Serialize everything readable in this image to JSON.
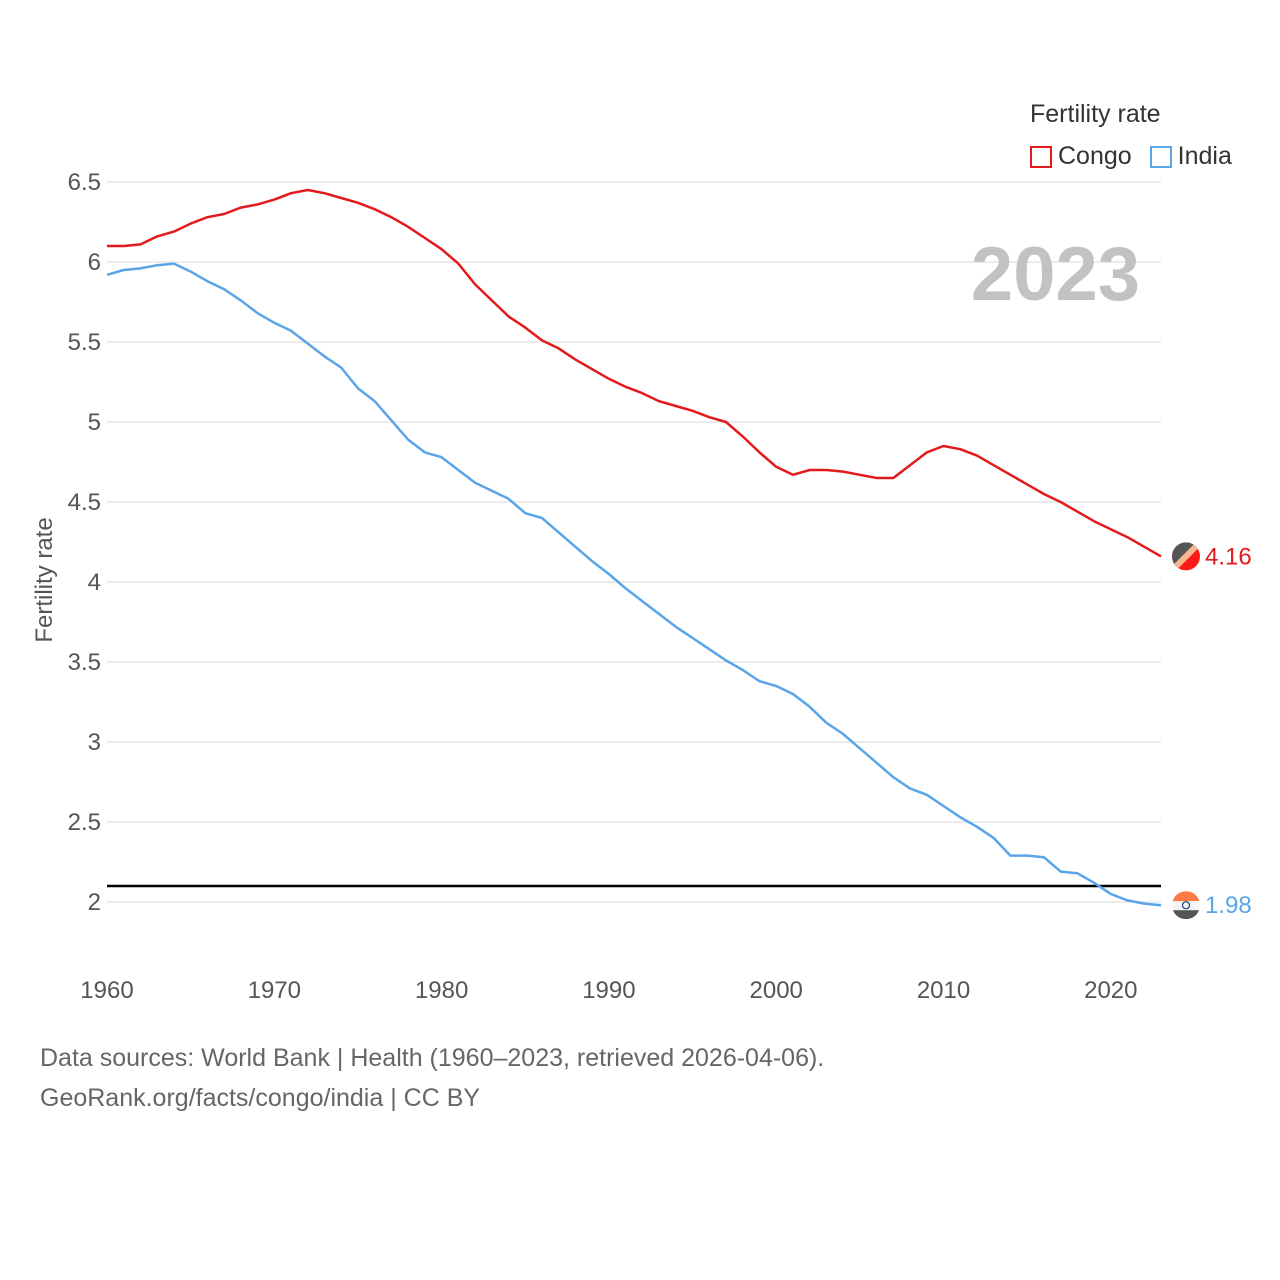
{
  "legend": {
    "title": "Fertility rate",
    "items": [
      {
        "label": "Congo",
        "color": "#e31a1c"
      },
      {
        "label": "India",
        "color": "#5aa5e8"
      }
    ]
  },
  "footer": {
    "line1": "Data sources: World Bank | Health (1960–2023, retrieved 2026-04-06).",
    "line2": "GeoRank.org/facts/congo/india | CC BY"
  },
  "chart_data": {
    "type": "line",
    "ylabel": "Fertility rate",
    "xlabel": "",
    "year_label": "2023",
    "xlim": [
      1960,
      2023
    ],
    "ylim": [
      1.6,
      6.6
    ],
    "xticks": [
      1960,
      1970,
      1980,
      1990,
      2000,
      2010,
      2020
    ],
    "yticks": [
      2,
      2.5,
      3,
      3.5,
      4,
      4.5,
      5,
      5.5,
      6,
      6.5
    ],
    "ytick_labels": [
      "2",
      "2.5",
      "3",
      "3.5",
      "4",
      "4.5",
      "5",
      "5.5",
      "6",
      "6.5"
    ],
    "reference_line": 2.1,
    "x": [
      1960,
      1961,
      1962,
      1963,
      1964,
      1965,
      1966,
      1967,
      1968,
      1969,
      1970,
      1971,
      1972,
      1973,
      1974,
      1975,
      1976,
      1977,
      1978,
      1979,
      1980,
      1981,
      1982,
      1983,
      1984,
      1985,
      1986,
      1987,
      1988,
      1989,
      1990,
      1991,
      1992,
      1993,
      1994,
      1995,
      1996,
      1997,
      1998,
      1999,
      2000,
      2001,
      2002,
      2003,
      2004,
      2005,
      2006,
      2007,
      2008,
      2009,
      2010,
      2011,
      2012,
      2013,
      2014,
      2015,
      2016,
      2017,
      2018,
      2019,
      2020,
      2021,
      2022,
      2023
    ],
    "series": [
      {
        "name": "Congo",
        "color": "#e31a1c",
        "end_label": "4.16",
        "values": [
          6.1,
          6.1,
          6.11,
          6.16,
          6.19,
          6.24,
          6.28,
          6.3,
          6.34,
          6.36,
          6.39,
          6.43,
          6.45,
          6.43,
          6.4,
          6.37,
          6.33,
          6.28,
          6.22,
          6.15,
          6.08,
          5.99,
          5.86,
          5.76,
          5.66,
          5.59,
          5.51,
          5.46,
          5.39,
          5.33,
          5.27,
          5.22,
          5.18,
          5.13,
          5.1,
          5.07,
          5.03,
          5.0,
          4.91,
          4.81,
          4.72,
          4.67,
          4.7,
          4.7,
          4.69,
          4.67,
          4.65,
          4.65,
          4.73,
          4.81,
          4.85,
          4.83,
          4.79,
          4.73,
          4.67,
          4.61,
          4.55,
          4.5,
          4.44,
          4.38,
          4.33,
          4.28,
          4.22,
          4.16
        ]
      },
      {
        "name": "India",
        "color": "#5aa5e8",
        "end_label": "1.98",
        "values": [
          5.92,
          5.95,
          5.96,
          5.98,
          5.99,
          5.94,
          5.88,
          5.83,
          5.76,
          5.68,
          5.62,
          5.57,
          5.49,
          5.41,
          5.34,
          5.21,
          5.13,
          5.01,
          4.89,
          4.81,
          4.78,
          4.7,
          4.62,
          4.57,
          4.52,
          4.43,
          4.4,
          4.31,
          4.22,
          4.13,
          4.05,
          3.96,
          3.88,
          3.8,
          3.72,
          3.65,
          3.58,
          3.51,
          3.45,
          3.38,
          3.35,
          3.3,
          3.22,
          3.12,
          3.05,
          2.96,
          2.87,
          2.78,
          2.71,
          2.67,
          2.6,
          2.53,
          2.47,
          2.4,
          2.29,
          2.29,
          2.28,
          2.19,
          2.18,
          2.12,
          2.05,
          2.01,
          1.99,
          1.98
        ]
      }
    ]
  }
}
